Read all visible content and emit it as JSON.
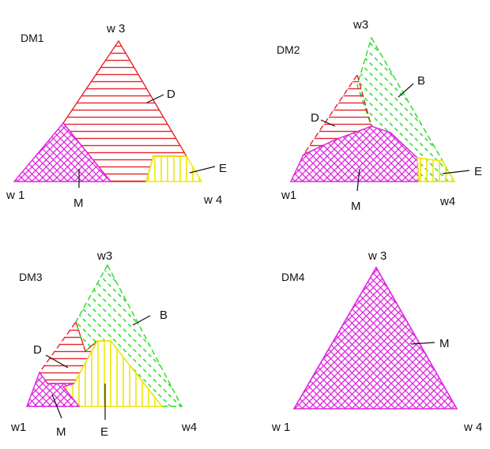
{
  "colors": {
    "D": "#e8222a",
    "B": "#22dd22",
    "E": "#f2e600",
    "M": "#e020e0",
    "leader": "#111111"
  },
  "panels": [
    {
      "name": "dm1",
      "title": "DM1",
      "vertices": {
        "left": "w 1",
        "top": "w 3",
        "right": "w 4"
      },
      "region_labels": {
        "D": "D",
        "E": "E",
        "M": "M"
      }
    },
    {
      "name": "dm2",
      "title": "DM2",
      "vertices": {
        "left": "w1",
        "top": "w3",
        "right": "w4"
      },
      "region_labels": {
        "B": "B",
        "D": "D",
        "E": "E",
        "M": "M"
      }
    },
    {
      "name": "dm3",
      "title": "DM3",
      "vertices": {
        "left": "w1",
        "top": "w3",
        "right": "w4"
      },
      "region_labels": {
        "B": "B",
        "D": "D",
        "E": "E",
        "M": "M"
      }
    },
    {
      "name": "dm4",
      "title": "DM4",
      "vertices": {
        "left": "w 1",
        "top": "w 3",
        "right": "w 4"
      },
      "region_labels": {
        "M": "M"
      }
    }
  ]
}
